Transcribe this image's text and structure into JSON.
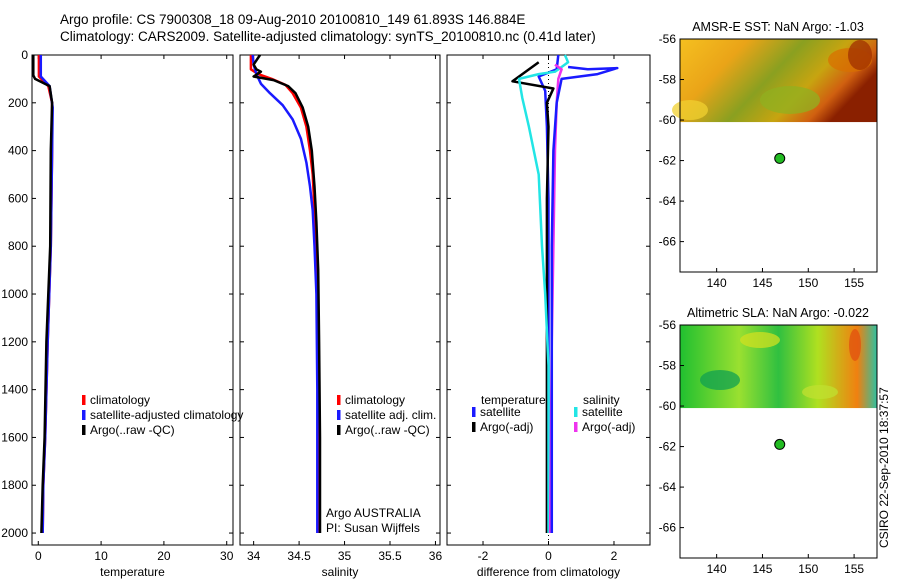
{
  "header": {
    "line1": "Argo profile: CS 7900308_18 09-Aug-2010 20100810_149 61.893S 146.884E",
    "line2": "Climatology: CARS2009. Satellite-adjusted climatology: synTS_20100810.nc (0.41d later)"
  },
  "credit": "CSIRO 22-Sep-2010 18:37:57",
  "colors": {
    "red": "#ff0000",
    "blue": "#1a1aff",
    "black": "#000000",
    "cyan": "#22e5e5",
    "magenta": "#ee33ee",
    "dot": "#22bb22"
  },
  "chart_data": [
    {
      "id": "temperature",
      "type": "line",
      "xlabel": "temperature",
      "xlim": [
        -1,
        31
      ],
      "ylim": [
        0,
        2050
      ],
      "xticks": [
        0,
        10,
        20,
        30
      ],
      "yticks": [
        0,
        200,
        400,
        600,
        800,
        1000,
        1200,
        1400,
        1600,
        1800,
        2000
      ],
      "legend": [
        "climatology",
        "satellite-adjusted climatology",
        "Argo(..raw -QC)"
      ],
      "series": [
        {
          "name": "climatology",
          "color": "red",
          "points": [
            [
              0.1,
              0
            ],
            [
              0.1,
              90
            ],
            [
              1.6,
              130
            ],
            [
              2.2,
              200
            ],
            [
              2.2,
              400
            ],
            [
              2.0,
              800
            ],
            [
              1.5,
              1200
            ],
            [
              1.1,
              1600
            ],
            [
              0.8,
              1800
            ],
            [
              0.7,
              2000
            ]
          ]
        },
        {
          "name": "satellite-adjusted climatology",
          "color": "blue",
          "points": [
            [
              0.4,
              0
            ],
            [
              0.4,
              90
            ],
            [
              1.8,
              130
            ],
            [
              2.3,
              220
            ],
            [
              2.2,
              400
            ],
            [
              2.0,
              800
            ],
            [
              1.5,
              1200
            ],
            [
              1.1,
              1600
            ],
            [
              0.8,
              1800
            ],
            [
              0.7,
              2000
            ]
          ]
        },
        {
          "name": "Argo(..raw -QC)",
          "color": "black",
          "points": [
            [
              -0.8,
              0
            ],
            [
              -0.8,
              85
            ],
            [
              -0.5,
              100
            ],
            [
              1.8,
              130
            ],
            [
              2.2,
              200
            ],
            [
              2.0,
              400
            ],
            [
              1.9,
              800
            ],
            [
              1.3,
              1200
            ],
            [
              1.0,
              1600
            ],
            [
              0.7,
              1800
            ],
            [
              0.5,
              2000
            ]
          ]
        }
      ]
    },
    {
      "id": "salinity",
      "type": "line",
      "xlabel": "salinity",
      "xlim": [
        33.85,
        36.05
      ],
      "ylim": [
        0,
        2050
      ],
      "xticks": [
        34,
        34.5,
        35,
        35.5,
        36
      ],
      "legend": [
        "climatology",
        "satellite adj. clim.",
        "Argo(..raw -QC)"
      ],
      "annotation": [
        "Argo AUSTRALIA",
        "PI: Susan Wijffels"
      ],
      "series": [
        {
          "name": "climatology",
          "color": "red",
          "points": [
            [
              33.97,
              0
            ],
            [
              33.97,
              60
            ],
            [
              34.05,
              80
            ],
            [
              34.2,
              100
            ],
            [
              34.35,
              125
            ],
            [
              34.43,
              160
            ],
            [
              34.52,
              220
            ],
            [
              34.58,
              300
            ],
            [
              34.62,
              400
            ],
            [
              34.65,
              500
            ],
            [
              34.67,
              650
            ],
            [
              34.69,
              800
            ],
            [
              34.71,
              1200
            ],
            [
              34.72,
              1600
            ],
            [
              34.72,
              2000
            ]
          ]
        },
        {
          "name": "satellite adj. clim.",
          "color": "blue",
          "points": [
            [
              33.99,
              0
            ],
            [
              34.0,
              40
            ],
            [
              34.03,
              80
            ],
            [
              34.08,
              120
            ],
            [
              34.18,
              160
            ],
            [
              34.32,
              210
            ],
            [
              34.43,
              270
            ],
            [
              34.52,
              350
            ],
            [
              34.58,
              450
            ],
            [
              34.62,
              550
            ],
            [
              34.65,
              650
            ],
            [
              34.67,
              800
            ],
            [
              34.69,
              1000
            ],
            [
              34.7,
              1400
            ],
            [
              34.7,
              2000
            ]
          ]
        },
        {
          "name": "Argo(..raw -QC)",
          "color": "black",
          "points": [
            [
              34.07,
              0
            ],
            [
              34.0,
              40
            ],
            [
              34.03,
              60
            ],
            [
              34.08,
              70
            ],
            [
              34.0,
              90
            ],
            [
              34.22,
              105
            ],
            [
              34.38,
              130
            ],
            [
              34.46,
              160
            ],
            [
              34.54,
              220
            ],
            [
              34.6,
              300
            ],
            [
              34.64,
              400
            ],
            [
              34.67,
              550
            ],
            [
              34.69,
              700
            ],
            [
              34.71,
              900
            ],
            [
              34.72,
              1200
            ],
            [
              34.73,
              1600
            ],
            [
              34.73,
              2000
            ]
          ]
        }
      ]
    },
    {
      "id": "difference",
      "type": "line",
      "xlabel": "difference from climatology",
      "xlim": [
        -3.1,
        3.1
      ],
      "ylim": [
        0,
        2050
      ],
      "xticks": [
        -2,
        0,
        2
      ],
      "legend_left": {
        "title": "temperature",
        "items": [
          "satellite",
          "Argo(-adj)"
        ]
      },
      "legend_right": {
        "title": "salinity",
        "items": [
          "satellite",
          "Argo(-adj)"
        ]
      },
      "series": [
        {
          "name": "temperature satellite",
          "color": "blue",
          "points": [
            [
              0.3,
              0
            ],
            [
              0.25,
              60
            ],
            [
              -0.3,
              90
            ],
            [
              -0.1,
              150
            ],
            [
              -0.05,
              300
            ],
            [
              0,
              600
            ],
            [
              0,
              1200
            ],
            [
              0,
              2000
            ]
          ]
        },
        {
          "name": "temperature Argo(-adj)",
          "color": "black",
          "points": [
            [
              -0.3,
              30
            ],
            [
              -1.1,
              110
            ],
            [
              0.15,
              140
            ],
            [
              -0.05,
              200
            ],
            [
              0,
              300
            ],
            [
              -0.05,
              600
            ],
            [
              -0.05,
              1200
            ],
            [
              -0.05,
              2000
            ]
          ]
        },
        {
          "name": "salinity satellite",
          "color": "cyan",
          "points": [
            [
              0.5,
              0
            ],
            [
              0.6,
              30
            ],
            [
              0.2,
              70
            ],
            [
              -0.3,
              80
            ],
            [
              -0.9,
              100
            ],
            [
              -0.8,
              180
            ],
            [
              -0.6,
              300
            ],
            [
              -0.3,
              500
            ],
            [
              -0.2,
              800
            ],
            [
              -0.1,
              1000
            ],
            [
              0,
              1300
            ],
            [
              0,
              2000
            ]
          ]
        },
        {
          "name": "salinity Argo(-adj)",
          "color": "magenta",
          "points": [
            [
              0.2,
              40
            ],
            [
              0.4,
              60
            ],
            [
              0.3,
              100
            ],
            [
              0.25,
              200
            ],
            [
              0.2,
              400
            ],
            [
              0.15,
              800
            ],
            [
              0.1,
              1200
            ],
            [
              0.05,
              2000
            ]
          ]
        },
        {
          "name": "salinity satellite spike",
          "color": "blue",
          "points": [
            [
              0.6,
              50
            ],
            [
              1.2,
              60
            ],
            [
              2.1,
              55
            ],
            [
              1.5,
              80
            ],
            [
              0.4,
              100
            ],
            [
              0.25,
              200
            ],
            [
              0.15,
              400
            ],
            [
              0.1,
              800
            ],
            [
              0.1,
              1200
            ],
            [
              0.1,
              2000
            ]
          ]
        }
      ]
    },
    {
      "id": "sst_map",
      "type": "heatmap",
      "title": "AMSR-E SST: NaN Argo: -1.03",
      "xlim": [
        136,
        157.5
      ],
      "ylim": [
        -67.5,
        -56
      ],
      "xticks": [
        140,
        145,
        150,
        155
      ],
      "yticks": [
        -56,
        -58,
        -60,
        -62,
        -64,
        -66
      ],
      "coverage_lat": -60.1,
      "point": {
        "lon": 146.884,
        "lat": -61.893
      }
    },
    {
      "id": "sla_map",
      "type": "heatmap",
      "title": "Altimetric SLA: NaN Argo: -0.022",
      "xlim": [
        136,
        157.5
      ],
      "ylim": [
        -67.5,
        -56
      ],
      "xticks": [
        140,
        145,
        150,
        155
      ],
      "yticks": [
        -56,
        -58,
        -60,
        -62,
        -64,
        -66
      ],
      "coverage_lat": -60.1,
      "point": {
        "lon": 146.884,
        "lat": -61.893
      }
    }
  ]
}
